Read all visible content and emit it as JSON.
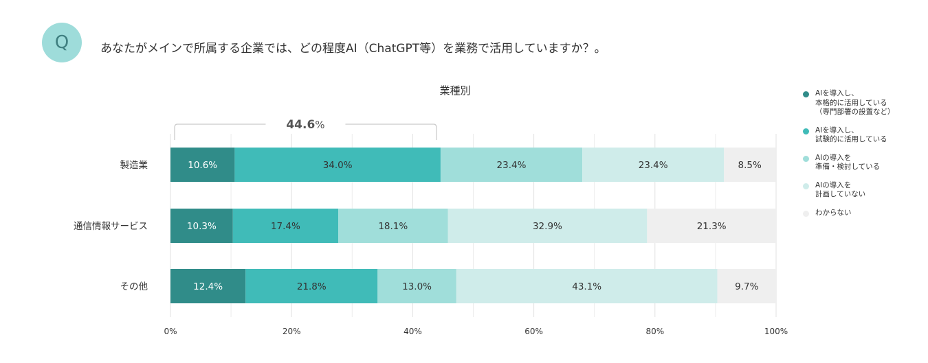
{
  "question": {
    "badge": "Q",
    "text": "あなたがメインで所属する企業では、どの程度AI（ChatGPT等）を業務で活用していますか？。"
  },
  "colors": {
    "badge_bg": "#9edcda",
    "series": [
      "#308c89",
      "#40bbb8",
      "#a0deda",
      "#cfecea",
      "#efefef"
    ]
  },
  "chart_data": {
    "type": "bar",
    "orientation": "horizontal",
    "stacked": true,
    "title": "業種別",
    "categories": [
      "製造業",
      "通信情報サービス",
      "その他"
    ],
    "series": [
      {
        "name": "AIを導入し、\n本格的に活用している\n（専門部署の設置など）",
        "values": [
          10.6,
          10.3,
          12.4
        ],
        "color": "#308c89"
      },
      {
        "name": "AIを導入し、\n試験的に活用している",
        "values": [
          34.0,
          17.4,
          21.8
        ],
        "color": "#40bbb8"
      },
      {
        "name": "AIの導入を\n準備・検討している",
        "values": [
          23.4,
          18.1,
          13.0
        ],
        "color": "#a0deda"
      },
      {
        "name": "AIの導入を\n計画していない",
        "values": [
          23.4,
          32.9,
          43.1
        ],
        "color": "#cfecea"
      },
      {
        "name": "わからない",
        "values": [
          8.5,
          21.3,
          9.7
        ],
        "color": "#efefef"
      }
    ],
    "xlim": [
      0,
      100
    ],
    "x_ticks": [
      "0%",
      "20%",
      "40%",
      "60%",
      "80%",
      "100%"
    ],
    "grid": true,
    "legend_position": "right",
    "annotation": {
      "value": "44.6",
      "unit": "%",
      "category": "製造業",
      "spans_series": [
        0,
        1
      ]
    }
  }
}
